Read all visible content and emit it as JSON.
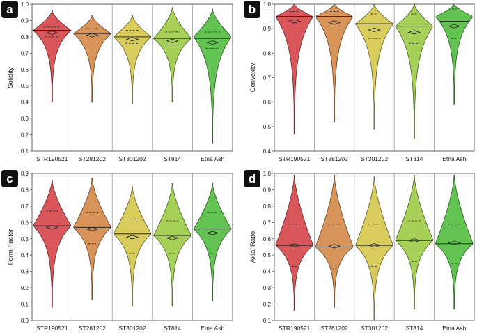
{
  "colors": [
    "#d9575a",
    "#d89458",
    "#d8cc5c",
    "#a6d058",
    "#62c252"
  ],
  "chart_data": [
    {
      "type": "violin",
      "panel": "a",
      "ylabel": "Solidity",
      "ylim": [
        0.1,
        1.0
      ],
      "yticks": [
        "0.1",
        "0.2",
        "0.3",
        "0.4",
        "0.5",
        "0.6",
        "0.7",
        "0.8",
        "0.9",
        "1.0"
      ],
      "categories": [
        "STR190521",
        "ST281202",
        "ST301202",
        "ST814",
        "Etna Ash"
      ],
      "series": [
        {
          "name": "STR190521",
          "min": 0.4,
          "max": 0.96,
          "q1": 0.8,
          "median": 0.84,
          "q3": 0.86,
          "mean": 0.825,
          "peak": 0.84
        },
        {
          "name": "ST281202",
          "min": 0.4,
          "max": 0.93,
          "q1": 0.78,
          "median": 0.82,
          "q3": 0.85,
          "mean": 0.81,
          "peak": 0.82
        },
        {
          "name": "ST301202",
          "min": 0.39,
          "max": 0.93,
          "q1": 0.76,
          "median": 0.8,
          "q3": 0.84,
          "mean": 0.785,
          "peak": 0.8
        },
        {
          "name": "ST814",
          "min": 0.4,
          "max": 0.98,
          "q1": 0.75,
          "median": 0.79,
          "q3": 0.83,
          "mean": 0.775,
          "peak": 0.79
        },
        {
          "name": "Etna Ash",
          "min": 0.15,
          "max": 0.97,
          "q1": 0.73,
          "median": 0.79,
          "q3": 0.83,
          "mean": 0.765,
          "peak": 0.8
        }
      ]
    },
    {
      "type": "violin",
      "panel": "b",
      "ylabel": "Convexity",
      "ylim": [
        0.4,
        1.0
      ],
      "yticks": [
        "0.4",
        "0.5",
        "0.6",
        "0.7",
        "0.8",
        "0.9",
        "1.0"
      ],
      "categories": [
        "STR190521",
        "ST281202",
        "ST301202",
        "ST814",
        "Etna Ash"
      ],
      "series": [
        {
          "name": "STR190521",
          "min": 0.47,
          "max": 1.0,
          "q1": 0.91,
          "median": 0.95,
          "q3": 0.97,
          "mean": 0.93,
          "peak": 0.95
        },
        {
          "name": "ST281202",
          "min": 0.52,
          "max": 1.0,
          "q1": 0.91,
          "median": 0.95,
          "q3": 0.97,
          "mean": 0.925,
          "peak": 0.95
        },
        {
          "name": "ST301202",
          "min": 0.49,
          "max": 1.0,
          "q1": 0.86,
          "median": 0.92,
          "q3": 0.96,
          "mean": 0.895,
          "peak": 0.92
        },
        {
          "name": "ST814",
          "min": 0.45,
          "max": 1.0,
          "q1": 0.84,
          "median": 0.91,
          "q3": 0.96,
          "mean": 0.885,
          "peak": 0.91
        },
        {
          "name": "Etna Ash",
          "min": 0.59,
          "max": 1.0,
          "q1": 0.86,
          "median": 0.93,
          "q3": 0.98,
          "mean": 0.91,
          "peak": 0.95
        }
      ]
    },
    {
      "type": "violin",
      "panel": "c",
      "ylabel": "Form Factor",
      "ylim": [
        0.0,
        0.9
      ],
      "yticks": [
        "0.0",
        "0.1",
        "0.2",
        "0.3",
        "0.4",
        "0.5",
        "0.6",
        "0.7",
        "0.8",
        "0.9"
      ],
      "categories": [
        "STR190521",
        "ST281202",
        "ST301202",
        "ST814",
        "Etna Ash"
      ],
      "series": [
        {
          "name": "STR190521",
          "min": 0.08,
          "max": 0.86,
          "q1": 0.48,
          "median": 0.58,
          "q3": 0.67,
          "mean": 0.57,
          "peak": 0.58
        },
        {
          "name": "ST281202",
          "min": 0.13,
          "max": 0.87,
          "q1": 0.47,
          "median": 0.57,
          "q3": 0.66,
          "mean": 0.56,
          "peak": 0.57
        },
        {
          "name": "ST301202",
          "min": 0.09,
          "max": 0.82,
          "q1": 0.41,
          "median": 0.53,
          "q3": 0.62,
          "mean": 0.51,
          "peak": 0.53
        },
        {
          "name": "ST814",
          "min": 0.09,
          "max": 0.84,
          "q1": 0.41,
          "median": 0.52,
          "q3": 0.61,
          "mean": 0.505,
          "peak": 0.52
        },
        {
          "name": "Etna Ash",
          "min": 0.12,
          "max": 0.84,
          "q1": 0.41,
          "median": 0.56,
          "q3": 0.66,
          "mean": 0.535,
          "peak": 0.56
        }
      ]
    },
    {
      "type": "violin",
      "panel": "d",
      "ylabel": "Axial Ratio",
      "ylim": [
        0.1,
        1.0
      ],
      "yticks": [
        "0.1",
        "0.2",
        "0.3",
        "0.4",
        "0.5",
        "0.6",
        "0.7",
        "0.8",
        "0.9",
        "1.0"
      ],
      "categories": [
        "STR190521",
        "ST281202",
        "ST301202",
        "ST814",
        "Etna Ash"
      ],
      "series": [
        {
          "name": "STR190521",
          "min": 0.16,
          "max": 0.99,
          "q1": 0.43,
          "median": 0.56,
          "q3": 0.69,
          "mean": 0.56,
          "peak": 0.56
        },
        {
          "name": "ST281202",
          "min": 0.18,
          "max": 0.99,
          "q1": 0.42,
          "median": 0.55,
          "q3": 0.69,
          "mean": 0.555,
          "peak": 0.55
        },
        {
          "name": "ST301202",
          "min": 0.1,
          "max": 0.98,
          "q1": 0.43,
          "median": 0.56,
          "q3": 0.69,
          "mean": 0.56,
          "peak": 0.56
        },
        {
          "name": "ST814",
          "min": 0.17,
          "max": 0.99,
          "q1": 0.46,
          "median": 0.59,
          "q3": 0.71,
          "mean": 0.59,
          "peak": 0.59
        },
        {
          "name": "Etna Ash",
          "min": 0.17,
          "max": 0.99,
          "q1": 0.45,
          "median": 0.57,
          "q3": 0.69,
          "mean": 0.575,
          "peak": 0.57
        }
      ]
    }
  ]
}
